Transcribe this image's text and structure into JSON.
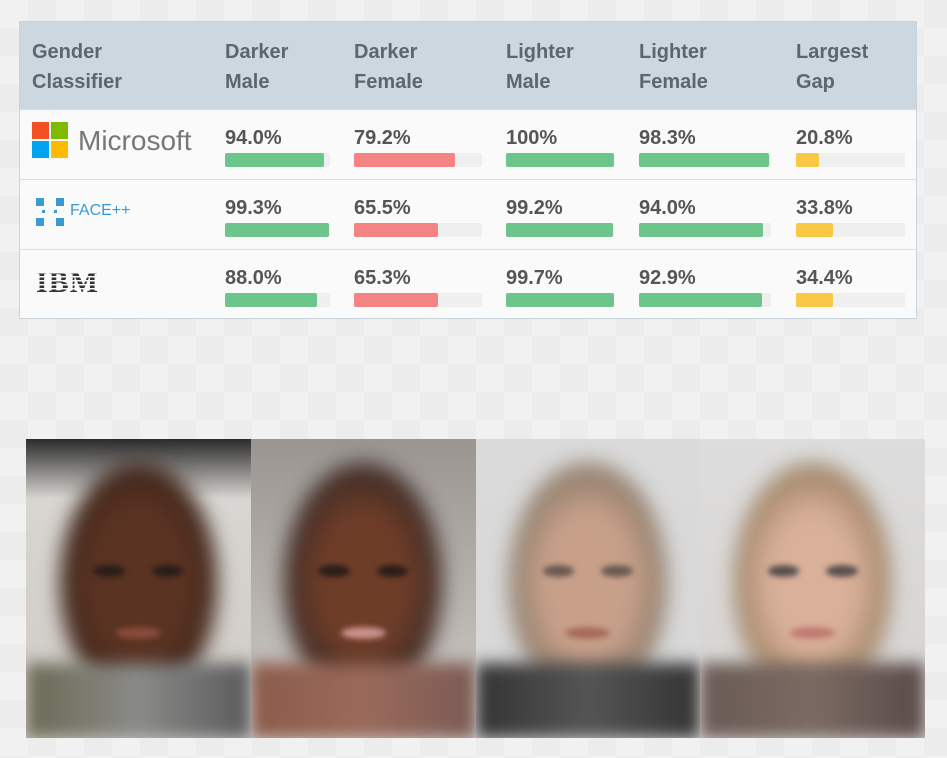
{
  "chart_data": {
    "type": "table",
    "columns": [
      "Gender Classifier",
      "Darker Male",
      "Darker Female",
      "Lighter Male",
      "Lighter Female",
      "Largest Gap"
    ],
    "header_lines": [
      [
        "Gender",
        "Classifier"
      ],
      [
        "Darker",
        "Male"
      ],
      [
        "Darker",
        "Female"
      ],
      [
        "Lighter",
        "Male"
      ],
      [
        "Lighter",
        "Female"
      ],
      [
        "Largest",
        "Gap"
      ]
    ],
    "rows": [
      {
        "classifier": "Microsoft",
        "values": [
          94.0,
          79.2,
          100,
          98.3,
          20.8
        ],
        "labels": [
          "94.0%",
          "79.2%",
          "100%",
          "98.3%",
          "20.8%"
        ]
      },
      {
        "classifier": "FACE++",
        "values": [
          99.3,
          65.5,
          99.2,
          94.0,
          33.8
        ],
        "labels": [
          "99.3%",
          "65.5%",
          "99.2%",
          "94.0%",
          "33.8%"
        ]
      },
      {
        "classifier": "IBM",
        "values": [
          88.0,
          65.3,
          99.7,
          92.9,
          34.4
        ],
        "labels": [
          "88.0%",
          "65.3%",
          "99.7%",
          "92.9%",
          "34.4%"
        ]
      }
    ],
    "bar_colors": [
      "#6cc58a",
      "#f48484",
      "#6cc58a",
      "#6cc58a",
      "#f9c846"
    ],
    "ylim": [
      0,
      100
    ]
  }
}
